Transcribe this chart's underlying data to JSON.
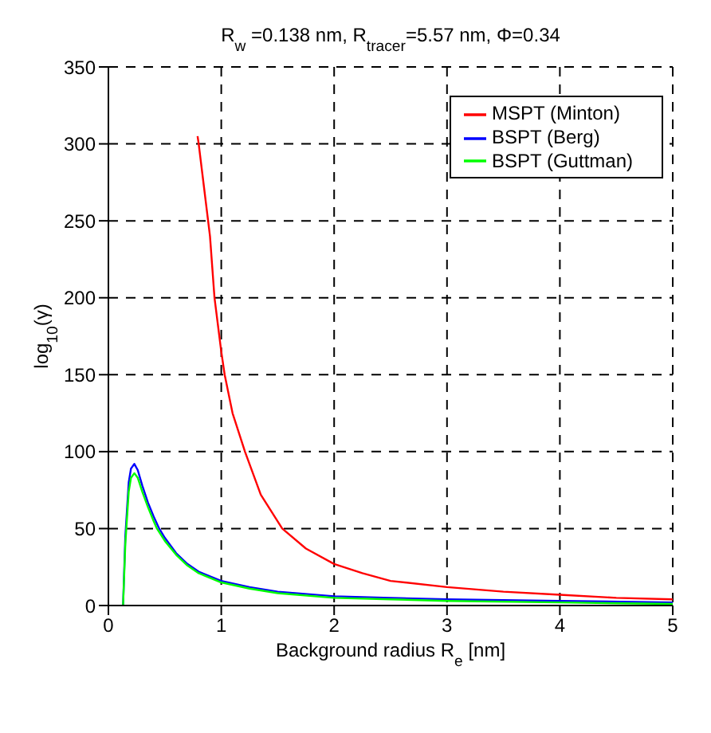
{
  "chart_data": {
    "type": "line",
    "title": "R$_{w}$ =0.138 nm, R$_{tracer}$=5.57 nm, Φ=0.34",
    "xlabel": "Background radius R$_{e}$ [nm]",
    "ylabel": "log$_{10}$(γ)",
    "xlim": [
      0,
      5
    ],
    "xticks": [
      0,
      1,
      2,
      3,
      4,
      5
    ],
    "ylim": [
      0,
      350
    ],
    "yticks": [
      0,
      50,
      100,
      150,
      200,
      250,
      300,
      350
    ],
    "grid": true,
    "legend": "top right",
    "marker": "none",
    "line_style": "solid",
    "series": [
      {
        "name": "MSPT (Minton)",
        "color": "#ff0000",
        "x": [
          0.79,
          0.8,
          0.85,
          0.9,
          0.94,
          1.0,
          1.03,
          1.1,
          1.21,
          1.35,
          1.54,
          1.75,
          2.0,
          2.25,
          2.5,
          3.0,
          3.5,
          4.0,
          4.5,
          5.0
        ],
        "values": [
          305,
          300,
          270,
          240,
          200,
          165,
          150,
          125,
          100,
          72,
          50,
          37,
          27,
          21,
          16,
          12,
          9,
          7,
          5,
          4
        ]
      },
      {
        "name": "BSPT (Berg)",
        "color": "#0000ff",
        "x": [
          0.13,
          0.15,
          0.18,
          0.2,
          0.23,
          0.26,
          0.3,
          0.35,
          0.4,
          0.45,
          0.5,
          0.6,
          0.7,
          0.8,
          1.0,
          1.25,
          1.5,
          2.0,
          2.5,
          3.0,
          4.0,
          5.0
        ],
        "values": [
          0,
          45,
          80,
          89,
          92,
          88,
          78,
          67,
          58,
          50,
          44,
          34,
          27,
          22,
          16,
          12,
          9,
          6,
          5,
          4,
          3,
          2
        ]
      },
      {
        "name": "BSPT (Guttman)",
        "color": "#00ff00",
        "x": [
          0.13,
          0.15,
          0.18,
          0.2,
          0.23,
          0.26,
          0.3,
          0.35,
          0.4,
          0.43,
          0.5,
          0.6,
          0.7,
          0.8,
          1.0,
          1.25,
          1.5,
          2.0,
          2.5,
          3.0,
          4.0,
          5.0
        ],
        "values": [
          0,
          40,
          74,
          83,
          86,
          83,
          74,
          64,
          55,
          50,
          42,
          33,
          26,
          21,
          15,
          11,
          8,
          5,
          4,
          3,
          2,
          1
        ]
      }
    ]
  }
}
